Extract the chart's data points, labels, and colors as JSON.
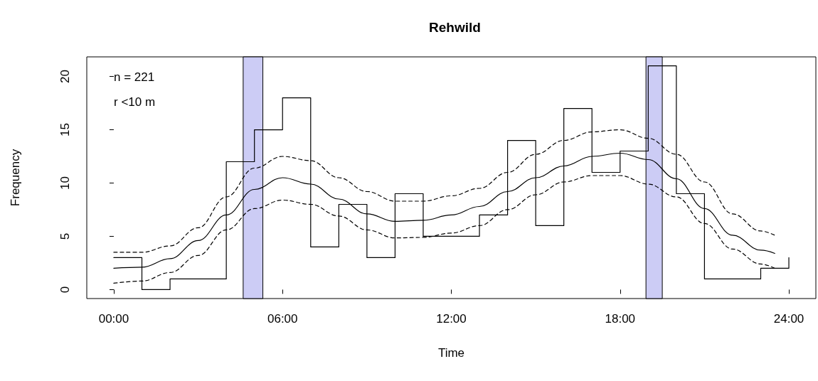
{
  "chart_data": {
    "type": "line",
    "title": "Rehwild",
    "xlabel": "Time",
    "ylabel": "Frequency",
    "annotations": [
      "n = 221",
      "r <10 m"
    ],
    "xlim": [
      -0.96,
      24.96
    ],
    "xticks": [
      {
        "value": 0,
        "label": "00:00"
      },
      {
        "value": 6,
        "label": "06:00"
      },
      {
        "value": 12,
        "label": "12:00"
      },
      {
        "value": 18,
        "label": "18:00"
      },
      {
        "value": 24,
        "label": "24:00"
      }
    ],
    "ylim": [
      -0.84,
      21.84
    ],
    "yticks": [
      0,
      5,
      10,
      15,
      20
    ],
    "grid": false,
    "marker": "none",
    "bands": [
      {
        "axis": "x",
        "from": 4.6,
        "to": 5.3,
        "color": "#ccccf5"
      },
      {
        "axis": "x",
        "from": 18.92,
        "to": 19.5,
        "color": "#ccccf5"
      }
    ],
    "series": [
      {
        "type": "step",
        "color": "#000000",
        "line_style": "solid",
        "x": [
          0,
          1,
          2,
          3,
          4,
          5,
          6,
          7,
          8,
          9,
          10,
          11,
          12,
          13,
          14,
          15,
          16,
          17,
          18,
          19,
          20,
          21,
          22,
          23,
          24
        ],
        "values": [
          3,
          0,
          1,
          1,
          12,
          15,
          18,
          4,
          8,
          3,
          9,
          5,
          5,
          7,
          14,
          6,
          17,
          11,
          13,
          21,
          9,
          1,
          1,
          2,
          3
        ]
      },
      {
        "color": "#000000",
        "line_style": "solid",
        "x": [
          0,
          1,
          2,
          3,
          4,
          5,
          6,
          7,
          8,
          9,
          10,
          11,
          12,
          13,
          14,
          15,
          16,
          17,
          18,
          19,
          20,
          21,
          22,
          23,
          23.5
        ],
        "values": [
          2.0,
          2.1,
          2.9,
          4.6,
          7.0,
          9.4,
          10.5,
          9.9,
          8.5,
          7.1,
          6.4,
          6.5,
          7.0,
          7.8,
          9.2,
          10.5,
          11.6,
          12.5,
          12.8,
          12.2,
          10.4,
          7.6,
          5.1,
          3.7,
          3.4
        ]
      },
      {
        "color": "#000000",
        "line_style": "dashed",
        "x": [
          0,
          1,
          2,
          3,
          4,
          5,
          6,
          7,
          8,
          9,
          10,
          11,
          12,
          13,
          14,
          15,
          16,
          17,
          18,
          19,
          20,
          21,
          22,
          23,
          23.5
        ],
        "values": [
          3.5,
          3.5,
          4.1,
          5.8,
          8.7,
          11.4,
          12.5,
          12.1,
          10.5,
          9.2,
          8.3,
          8.3,
          8.8,
          9.5,
          11.0,
          12.7,
          14.0,
          14.8,
          15.0,
          14.2,
          12.7,
          10.1,
          7.1,
          5.5,
          5.1
        ]
      },
      {
        "color": "#000000",
        "line_style": "dashed",
        "x": [
          0,
          1,
          2,
          3,
          4,
          5,
          6,
          7,
          8,
          9,
          10,
          11,
          12,
          13,
          14,
          15,
          16,
          17,
          18,
          19,
          20,
          21,
          22,
          23,
          23.5
        ],
        "values": [
          0.6,
          0.8,
          1.6,
          3.2,
          5.6,
          7.6,
          8.4,
          8.0,
          6.9,
          5.6,
          4.85,
          4.9,
          5.3,
          6.0,
          7.5,
          8.9,
          10.1,
          10.7,
          10.7,
          9.9,
          8.7,
          6.2,
          3.8,
          2.4,
          2.0
        ]
      }
    ]
  }
}
